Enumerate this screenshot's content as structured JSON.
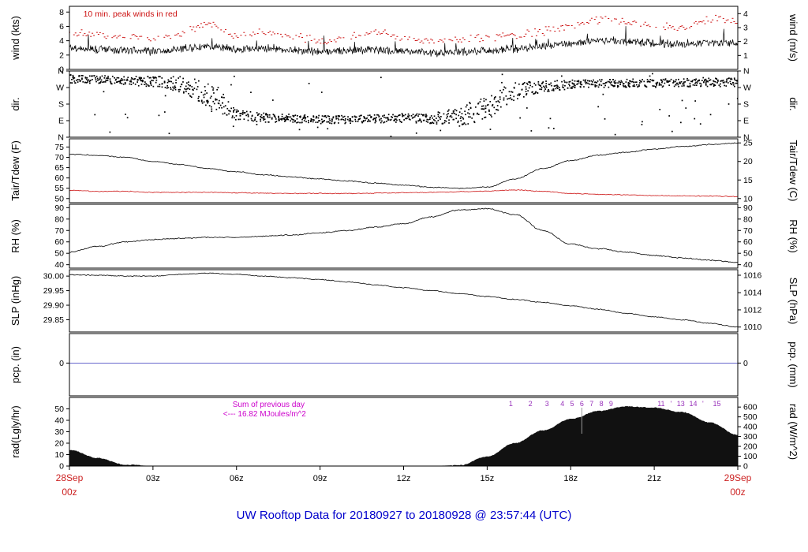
{
  "title": "UW Rooftop Data for 20180927  to  20180928 @ 23:57:44  (UTC)",
  "colors": {
    "trace": "#000000",
    "peak_wind": "#cc1111",
    "dewpoint": "#cc1111",
    "precip": "#3333bb",
    "title": "#0000cc",
    "date_label": "#cc2222",
    "annotation_magenta": "#cc00cc",
    "annotation_purple": "#9933bb",
    "panel_border": "#000000"
  },
  "x_axis": {
    "tick_hours": [
      3,
      6,
      9,
      12,
      15,
      18,
      21
    ],
    "tick_labels": [
      "03z",
      "06z",
      "09z",
      "12z",
      "15z",
      "18z",
      "21z"
    ],
    "left_date": "28Sep",
    "left_time": "00z",
    "right_date": "29Sep",
    "right_time": "00z"
  },
  "chart_data": {
    "type": "line",
    "x_hours": [
      0,
      1,
      2,
      3,
      4,
      5,
      6,
      7,
      8,
      9,
      10,
      11,
      12,
      13,
      14,
      15,
      16,
      17,
      18,
      19,
      20,
      21,
      22,
      23,
      24
    ],
    "x_range_hours": [
      0,
      24
    ],
    "layout": {
      "plot_left": 88,
      "plot_right": 935,
      "panel_tops": [
        8,
        90,
        176,
        259,
        342,
        423,
        504
      ],
      "panel_heights": [
        80,
        84,
        81,
        81,
        79,
        79,
        87
      ]
    },
    "panels": [
      {
        "id": "wind",
        "ylabel_left": "wind (kts)",
        "ylabel_right": "wind (m/s)",
        "ylim": [
          0,
          8.8
        ],
        "yticks_left": {
          "values": [
            0,
            2,
            4,
            6,
            8
          ],
          "labels": [
            "0",
            "2",
            "4",
            "6",
            "8"
          ]
        },
        "yticks_right": {
          "values": [
            1.944,
            3.889,
            5.832,
            7.776
          ],
          "labels": [
            "1",
            "2",
            "3",
            "4"
          ]
        },
        "annotations": [
          {
            "text": "10 min. peak winds in red",
            "color_key": "peak_wind",
            "hour": 0.5,
            "dy": 13,
            "anchor": "start",
            "size": 10.5
          }
        ],
        "series": [
          {
            "name": "wind speed (kts)",
            "style": "noisy-line",
            "color_key": "trace",
            "noise": 0.55,
            "y": [
              3.0,
              2.8,
              2.7,
              2.5,
              2.9,
              3.2,
              2.8,
              3.0,
              2.7,
              2.4,
              2.6,
              2.8,
              2.5,
              2.3,
              2.5,
              2.7,
              2.9,
              3.2,
              3.6,
              4.0,
              3.9,
              3.7,
              3.5,
              3.8,
              3.6
            ]
          },
          {
            "name": "10 min. peak wind (kts)",
            "style": "dotted",
            "color_key": "peak_wind",
            "noise": 0.45,
            "y": [
              5.2,
              4.8,
              4.6,
              4.3,
              5.0,
              6.5,
              4.8,
              5.2,
              4.6,
              4.0,
              4.4,
              5.4,
              4.2,
              3.9,
              4.2,
              4.5,
              4.8,
              5.3,
              6.2,
              7.0,
              6.6,
              6.0,
              5.8,
              7.2,
              6.8
            ]
          }
        ]
      },
      {
        "id": "dir",
        "ylabel_left": "dir.",
        "ylabel_right": "dir.",
        "ylim": [
          0,
          360
        ],
        "yticks_left": {
          "values": [
            360,
            270,
            180,
            90,
            0
          ],
          "labels": [
            "N",
            "W",
            "S",
            "E",
            "N"
          ]
        },
        "yticks_right": {
          "values": [
            360,
            270,
            180,
            90,
            0
          ],
          "labels": [
            "N",
            "W",
            "S",
            "E",
            "N"
          ]
        },
        "annotations": [],
        "series": [
          {
            "name": "wind direction (deg)",
            "style": "scatter-dir",
            "color_key": "trace",
            "mean": [
              320,
              318,
              312,
              305,
              292,
              230,
              130,
              110,
              105,
              100,
              100,
              104,
              108,
              102,
              118,
              170,
              255,
              280,
              290,
              295,
              298,
              296,
              300,
              304,
              300
            ],
            "spread": [
              22,
              22,
              24,
              28,
              45,
              70,
              35,
              25,
              22,
              22,
              22,
              22,
              24,
              28,
              55,
              70,
              45,
              30,
              24,
              22,
              22,
              22,
              24,
              24,
              24
            ]
          }
        ]
      },
      {
        "id": "temp",
        "ylabel_left": "Tair/Tdew (F)",
        "ylabel_right": "Tair/Tdew (C)",
        "ylim": [
          48,
          79
        ],
        "yticks_left": {
          "values": [
            50,
            55,
            60,
            65,
            70,
            75
          ],
          "labels": [
            "50",
            "55",
            "60",
            "65",
            "70",
            "75"
          ]
        },
        "yticks_right": {
          "values": [
            50,
            59,
            68,
            77
          ],
          "labels": [
            "10",
            "15",
            "20",
            "25"
          ]
        },
        "annotations": [],
        "series": [
          {
            "name": "air temperature (F)",
            "style": "line",
            "color_key": "trace",
            "noise": 0.25,
            "y": [
              71.5,
              71.0,
              70.0,
              68.0,
              66.5,
              64.5,
              63.0,
              61.5,
              60.5,
              59.5,
              58.5,
              57.5,
              56.5,
              55.5,
              55.0,
              55.5,
              59.5,
              64.5,
              68.5,
              71.0,
              72.5,
              74.0,
              75.2,
              76.2,
              77.0
            ]
          },
          {
            "name": "dew point (F)",
            "style": "line",
            "color_key": "dewpoint",
            "noise": 0.2,
            "y": [
              54.0,
              53.5,
              53.5,
              53.0,
              53.0,
              53.0,
              52.8,
              52.6,
              52.5,
              52.5,
              52.5,
              52.6,
              52.8,
              53.0,
              53.3,
              53.6,
              54.2,
              53.5,
              52.5,
              52.0,
              51.8,
              51.5,
              51.3,
              51.2,
              51.0
            ]
          }
        ]
      },
      {
        "id": "rh",
        "ylabel_left": "RH (%)",
        "ylabel_right": "RH (%)",
        "ylim": [
          37,
          93
        ],
        "yticks_left": {
          "values": [
            40,
            50,
            60,
            70,
            80,
            90
          ],
          "labels": [
            "40",
            "50",
            "60",
            "70",
            "80",
            "90"
          ]
        },
        "yticks_right": {
          "values": [
            40,
            50,
            60,
            70,
            80,
            90
          ],
          "labels": [
            "40",
            "50",
            "60",
            "70",
            "80",
            "90"
          ]
        },
        "annotations": [],
        "series": [
          {
            "name": "relative humidity (%)",
            "style": "line",
            "color_key": "trace",
            "noise": 0.5,
            "y": [
              51,
              56,
              60,
              62,
              63,
              64,
              64,
              65,
              66,
              68,
              70,
              73,
              76,
              82,
              88,
              89,
              84,
              70,
              58,
              54,
              51,
              48,
              46,
              44,
              42
            ]
          }
        ]
      },
      {
        "id": "slp",
        "ylabel_left": "SLP (inHg)",
        "ylabel_right": "SLP (hPa)",
        "ylim": [
          29.808,
          30.022
        ],
        "yticks_left": {
          "values": [
            29.85,
            29.9,
            29.95,
            30.0
          ],
          "labels": [
            "29.85",
            "29.90",
            "29.95",
            "30.00"
          ]
        },
        "yticks_right": {
          "values": [
            29.825,
            29.884,
            29.943,
            30.003
          ],
          "labels": [
            "1010",
            "1012",
            "1014",
            "1016"
          ]
        },
        "annotations": [],
        "series": [
          {
            "name": "sea level pressure (inHg)",
            "style": "line",
            "color_key": "trace",
            "noise": 0.0015,
            "y": [
              30.005,
              30.003,
              30.0,
              30.0,
              30.006,
              30.01,
              30.006,
              30.0,
              29.994,
              29.988,
              29.98,
              29.97,
              29.96,
              29.95,
              29.94,
              29.93,
              29.92,
              29.91,
              29.898,
              29.886,
              29.872,
              29.86,
              29.85,
              29.838,
              29.825
            ]
          }
        ]
      },
      {
        "id": "pcp",
        "ylabel_left": "pcp. (in)",
        "ylabel_right": "pcp. (mm)",
        "ylim": [
          -1,
          0.9
        ],
        "yticks_left": {
          "values": [
            0
          ],
          "labels": [
            "0"
          ]
        },
        "yticks_right": {
          "values": [
            0
          ],
          "labels": [
            "0"
          ]
        },
        "annotations": [],
        "series": [
          {
            "name": "precipitation (in)",
            "style": "line",
            "color_key": "precip",
            "noise": 0,
            "y": [
              0,
              0,
              0,
              0,
              0,
              0,
              0,
              0,
              0,
              0,
              0,
              0,
              0,
              0,
              0,
              0,
              0,
              0,
              0,
              0,
              0,
              0,
              0,
              0,
              0
            ]
          }
        ]
      },
      {
        "id": "rad",
        "ylabel_left": "rad(Lgly/hr)",
        "ylabel_right": "rad (W/m^2)",
        "ylim": [
          0,
          60
        ],
        "yticks_left": {
          "values": [
            0,
            10,
            20,
            30,
            40,
            50
          ],
          "labels": [
            "0",
            "10",
            "20",
            "30",
            "40",
            "50"
          ]
        },
        "yticks_right": {
          "values": [
            0,
            8.6,
            17.2,
            25.8,
            34.4,
            43.0,
            51.6
          ],
          "labels": [
            "0",
            "100",
            "200",
            "300",
            "400",
            "500",
            "600"
          ]
        },
        "annotations": [
          {
            "text": "Sum of previous day",
            "color_key": "annotation_magenta",
            "hour": 5.86,
            "dy": 12,
            "anchor": "start",
            "size": 10
          },
          {
            "text": "<--- 16.82 MJoules/m^2",
            "color_key": "annotation_magenta",
            "hour": 5.52,
            "dy": 24,
            "anchor": "start",
            "size": 10
          },
          {
            "vline": true,
            "hour": 18.4,
            "dy1": 13,
            "dy2": 46,
            "color": "#999999"
          },
          {
            "text": "1",
            "color_key": "annotation_purple",
            "hour": 15.85,
            "dy": 11,
            "anchor": "middle",
            "size": 9
          },
          {
            "text": "2",
            "color_key": "annotation_purple",
            "hour": 16.55,
            "dy": 11,
            "anchor": "middle",
            "size": 9
          },
          {
            "text": "3",
            "color_key": "annotation_purple",
            "hour": 17.15,
            "dy": 11,
            "anchor": "middle",
            "size": 9
          },
          {
            "text": "4",
            "color_key": "annotation_purple",
            "hour": 17.7,
            "dy": 11,
            "anchor": "middle",
            "size": 9
          },
          {
            "text": "5",
            "color_key": "annotation_purple",
            "hour": 18.05,
            "dy": 11,
            "anchor": "middle",
            "size": 9
          },
          {
            "text": "6",
            "color_key": "annotation_purple",
            "hour": 18.4,
            "dy": 11,
            "anchor": "middle",
            "size": 9
          },
          {
            "text": "7",
            "color_key": "annotation_purple",
            "hour": 18.75,
            "dy": 11,
            "anchor": "middle",
            "size": 9
          },
          {
            "text": "8",
            "color_key": "annotation_purple",
            "hour": 19.1,
            "dy": 11,
            "anchor": "middle",
            "size": 9
          },
          {
            "text": "9",
            "color_key": "annotation_purple",
            "hour": 19.45,
            "dy": 11,
            "anchor": "middle",
            "size": 9
          },
          {
            "text": "11",
            "color_key": "annotation_purple",
            "hour": 21.25,
            "dy": 11,
            "anchor": "middle",
            "size": 9
          },
          {
            "text": "'",
            "color_key": "annotation_purple",
            "hour": 21.6,
            "dy": 11,
            "anchor": "middle",
            "size": 9
          },
          {
            "text": "13",
            "color_key": "annotation_purple",
            "hour": 21.95,
            "dy": 11,
            "anchor": "middle",
            "size": 9
          },
          {
            "text": "14",
            "color_key": "annotation_purple",
            "hour": 22.4,
            "dy": 11,
            "anchor": "middle",
            "size": 9
          },
          {
            "text": "'",
            "color_key": "annotation_purple",
            "hour": 22.75,
            "dy": 11,
            "anchor": "middle",
            "size": 9
          },
          {
            "text": "15",
            "color_key": "annotation_purple",
            "hour": 23.25,
            "dy": 11,
            "anchor": "middle",
            "size": 9
          }
        ],
        "series": [
          {
            "name": "solar radiation (Lgly/hr)",
            "style": "area",
            "color_key": "trace",
            "noise": 0.35,
            "y": [
              14,
              7,
              1,
              0,
              0,
              0,
              0,
              0,
              0,
              0,
              0,
              0,
              0,
              0,
              0.5,
              8,
              20,
              31,
              41,
              48,
              52,
              51,
              47,
              38,
              27
            ]
          }
        ]
      }
    ]
  }
}
